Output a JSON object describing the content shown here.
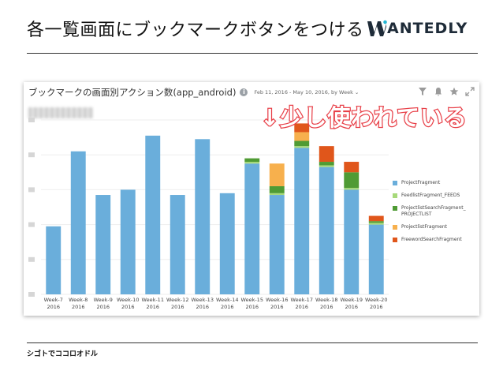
{
  "slide": {
    "title": "各一覧画面にブックマークボタンをつける",
    "logo_text": "ANTEDLY",
    "footer": "シゴトでココロオドル"
  },
  "panel": {
    "title": "ブックマークの画面別アクション数(app_android)",
    "info_icon_glyph": "i",
    "date_range": "Feb 11, 2016 - May 10, 2016, by Week ⌄",
    "annotation": "↓少し使われている",
    "tools": [
      "filter-icon",
      "bell-icon",
      "star-icon",
      "expand-icon"
    ]
  },
  "colors": {
    "ProjectFragment": "#6aaedb",
    "FeedlistFragment_FEEDS": "#a7d97a",
    "ProjectlistSearchFragment_PROJECTLIST": "#4f9b34",
    "ProjectlistFragment": "#f7b04d",
    "FreewordSearchFragment": "#e0561b"
  },
  "chart_data": {
    "type": "bar",
    "stacked": true,
    "title": "ブックマークの画面別アクション数(app_android)",
    "categories": [
      [
        "Week-7",
        "2016"
      ],
      [
        "Week-8",
        "2016"
      ],
      [
        "Week-9",
        "2016"
      ],
      [
        "Week-10",
        "2016"
      ],
      [
        "Week-11",
        "2016"
      ],
      [
        "Week-12",
        "2016"
      ],
      [
        "Week-13",
        "2016"
      ],
      [
        "Week-14",
        "2016"
      ],
      [
        "Week-15",
        "2016"
      ],
      [
        "Week-16",
        "2016"
      ],
      [
        "Week-17",
        "2016"
      ],
      [
        "Week-18",
        "2016"
      ],
      [
        "Week-19",
        "2016"
      ],
      [
        "Week-20",
        "2016"
      ]
    ],
    "series": [
      {
        "name": "ProjectFragment",
        "color": "#6aaedb",
        "values": [
          39,
          82,
          57,
          60,
          91,
          57,
          89,
          58,
          75,
          57,
          84,
          73,
          60,
          40
        ]
      },
      {
        "name": "FeedlistFragment_FEEDS",
        "color": "#a7d97a",
        "values": [
          0,
          0,
          0,
          0,
          0,
          0,
          0,
          0,
          1,
          1,
          1,
          1,
          1,
          1
        ]
      },
      {
        "name": "ProjectlistSearchFragment_PROJECTLIST",
        "color": "#4f9b34",
        "values": [
          0,
          0,
          0,
          0,
          0,
          0,
          0,
          0,
          2,
          4,
          3,
          2,
          9,
          1
        ]
      },
      {
        "name": "ProjectlistFragment",
        "color": "#f7b04d",
        "values": [
          0,
          0,
          0,
          0,
          0,
          0,
          0,
          0,
          0,
          13,
          5,
          0,
          0,
          0
        ]
      },
      {
        "name": "FreewordSearchFragment",
        "color": "#e0561b",
        "values": [
          0,
          0,
          0,
          0,
          0,
          0,
          0,
          0,
          0,
          0,
          5,
          9,
          6,
          3
        ]
      }
    ],
    "legend": [
      {
        "label": "ProjectFragment",
        "color": "#6aaedb"
      },
      {
        "label": "FeedlistFragment_FEEDS",
        "color": "#a7d97a"
      },
      {
        "label": "ProjectlistSearchFragment_ PROJECTLIST",
        "color": "#4f9b34"
      },
      {
        "label": "ProjectlistFragment",
        "color": "#f7b04d"
      },
      {
        "label": "FreewordSearchFragment",
        "color": "#e0561b"
      }
    ],
    "ylim": [
      0,
      100
    ],
    "legend_position": "right",
    "xlabel": "",
    "ylabel": ""
  }
}
